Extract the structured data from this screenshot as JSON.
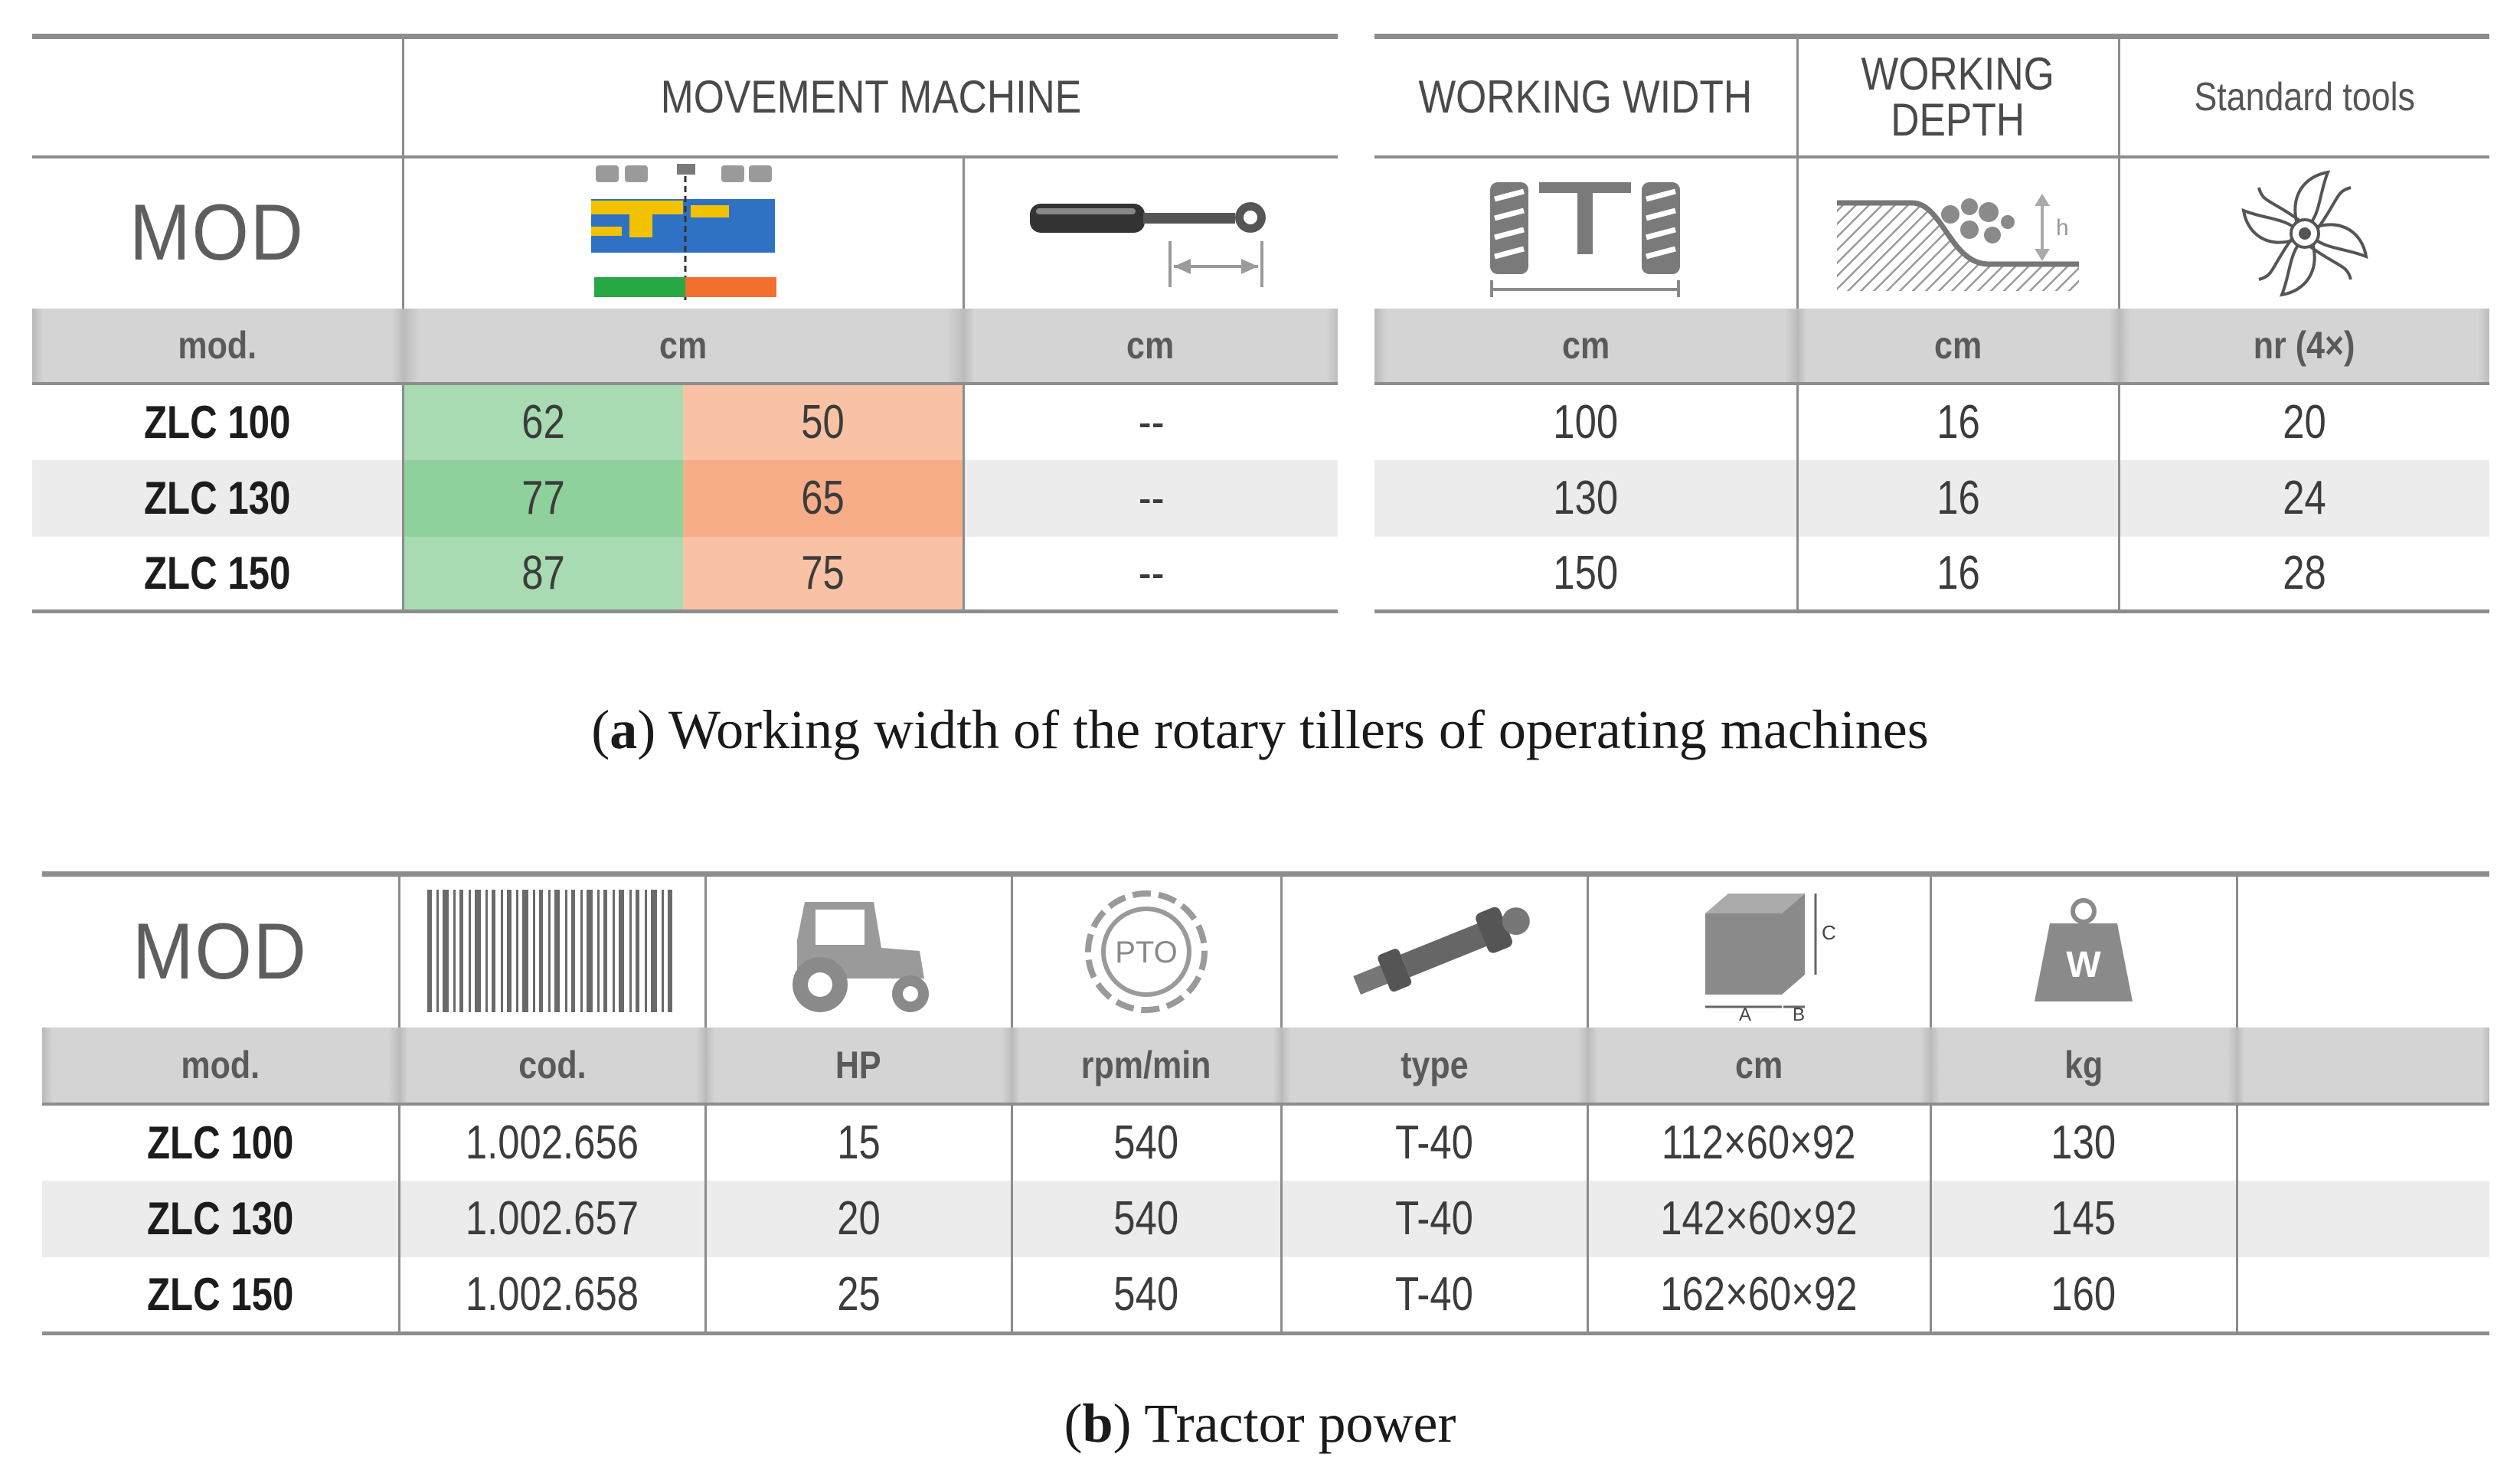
{
  "table_a": {
    "mod_label": "MOD",
    "movement_title": "MOVEMENT MACHINE",
    "working_width_title": "WORKING WIDTH",
    "working_depth_title_1": "WORKING",
    "working_depth_title_2": "DEPTH",
    "standard_tools_title": "Standard tools",
    "depth_icon_letter": "h",
    "units": [
      "mod.",
      "cm",
      "cm",
      "cm",
      "cm",
      "nr (4×)"
    ],
    "rows": [
      {
        "mod": "ZLC 100",
        "left": "62",
        "right": "50",
        "hydraulic": "--",
        "width": "100",
        "depth": "16",
        "tools": "20"
      },
      {
        "mod": "ZLC 130",
        "left": "77",
        "right": "65",
        "hydraulic": "--",
        "width": "130",
        "depth": "16",
        "tools": "24"
      },
      {
        "mod": "ZLC 150",
        "left": "87",
        "right": "75",
        "hydraulic": "--",
        "width": "150",
        "depth": "16",
        "tools": "28"
      }
    ],
    "colors": {
      "green": "#a8dbb1",
      "orange": "#f9c2a4",
      "machine_blue": "#2f72c4",
      "machine_yellow": "#f2c200"
    }
  },
  "caption_a": {
    "label": "a",
    "text": "Working width of the rotary tillers of operating machines"
  },
  "table_b": {
    "mod_label": "MOD",
    "pto_label": "PTO",
    "weight_label": "W",
    "dim_letters": {
      "a": "A",
      "b": "B",
      "c": "C"
    },
    "units": [
      "mod.",
      "cod.",
      "HP",
      "rpm/min",
      "type",
      "cm",
      "kg"
    ],
    "rows": [
      {
        "mod": "ZLC 100",
        "cod": "1.002.656",
        "hp": "15",
        "rpm": "540",
        "type": "T-40",
        "dims": "112×60×92",
        "kg": "130"
      },
      {
        "mod": "ZLC 130",
        "cod": "1.002.657",
        "hp": "20",
        "rpm": "540",
        "type": "T-40",
        "dims": "142×60×92",
        "kg": "145"
      },
      {
        "mod": "ZLC 150",
        "cod": "1.002.658",
        "hp": "25",
        "rpm": "540",
        "type": "T-40",
        "dims": "162×60×92",
        "kg": "160"
      }
    ]
  },
  "caption_b": {
    "label": "b",
    "text": "Tractor power"
  }
}
